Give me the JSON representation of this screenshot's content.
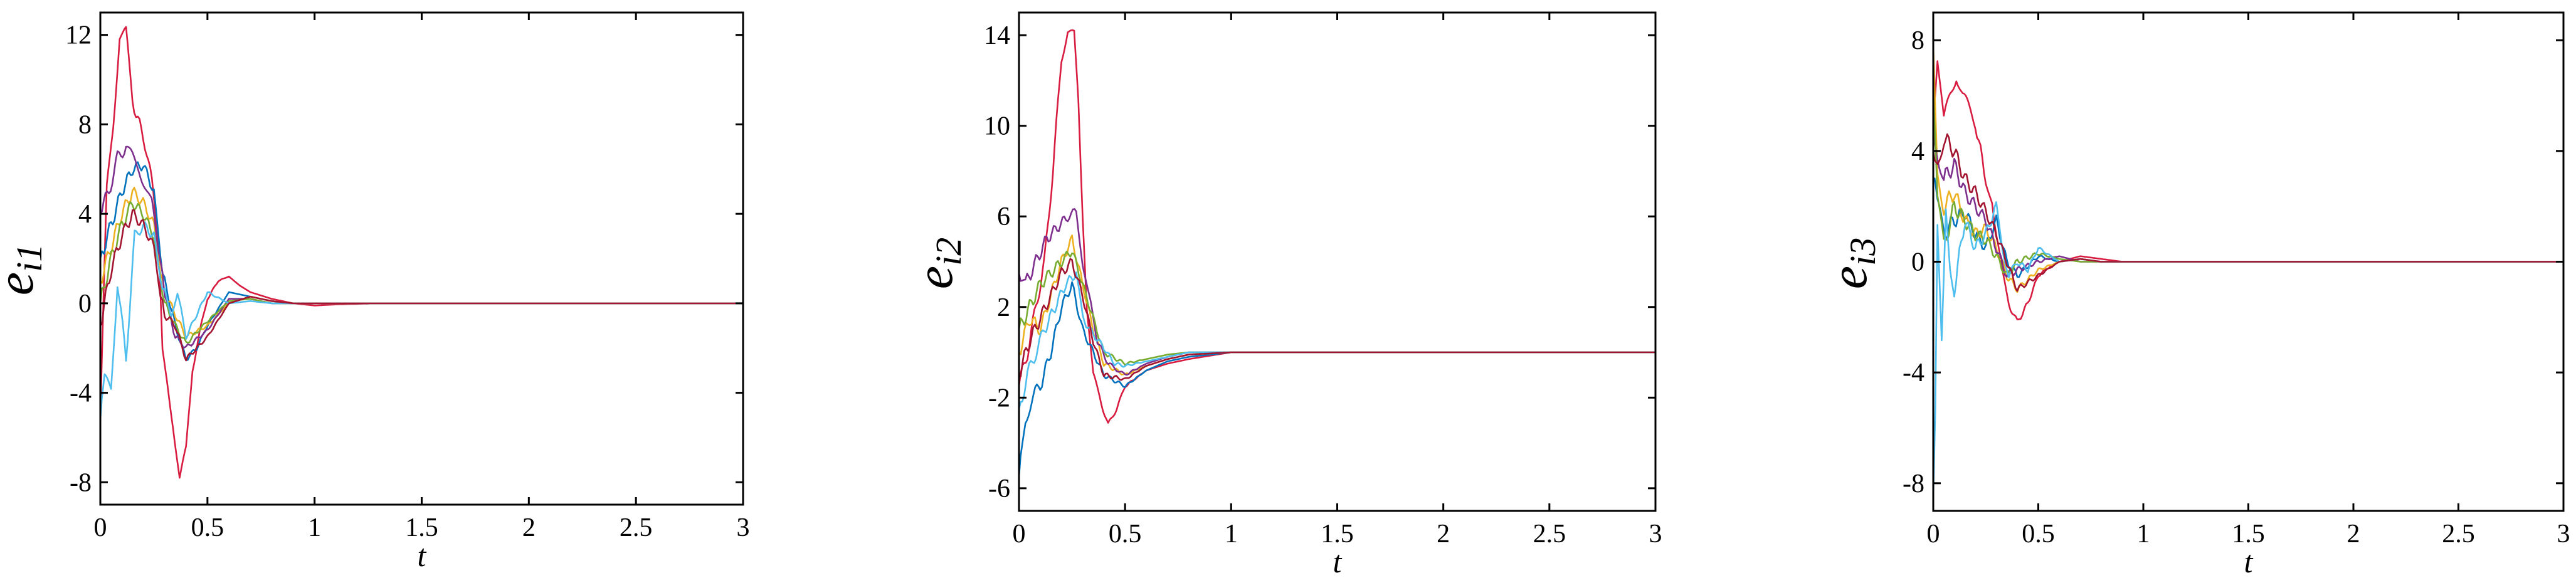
{
  "chart_data": [
    {
      "type": "line",
      "xlabel": "t",
      "ylabel_base": "e",
      "ylabel_sub": "i1",
      "xlim": [
        0,
        3
      ],
      "ylim": [
        -9,
        13
      ],
      "xticks": [
        0,
        0.5,
        1,
        1.5,
        2,
        2.5,
        3
      ],
      "xtick_labels": [
        "0",
        "0.5",
        "1",
        "1.5",
        "2",
        "2.5",
        "3"
      ],
      "yticks": [
        -8,
        -4,
        0,
        4,
        8,
        12
      ],
      "ytick_labels": [
        "-8",
        "-4",
        "0",
        "4",
        "8",
        "12"
      ],
      "grid": false,
      "series": [
        {
          "color": "#d81b3f",
          "x": [
            0,
            0.03,
            0.06,
            0.09,
            0.12,
            0.15,
            0.2,
            0.24,
            0.27,
            0.29,
            0.31,
            0.34,
            0.37,
            0.4,
            0.43,
            0.47,
            0.5,
            0.55,
            0.6,
            0.65,
            0.7,
            0.8,
            0.9,
            1.0,
            1.1,
            1.3,
            1.5,
            2,
            3
          ],
          "y": [
            -5,
            5,
            8,
            12,
            12.1,
            9,
            7.5,
            5.5,
            3,
            -2,
            -3.5,
            -5.5,
            -7.8,
            -6.5,
            -3,
            -1,
            0.2,
            1,
            1.2,
            0.8,
            0.5,
            0.2,
            0,
            -0.1,
            -0.05,
            0,
            0,
            0,
            0
          ]
        },
        {
          "color": "#0072bd",
          "x": [
            0,
            0.05,
            0.1,
            0.15,
            0.2,
            0.25,
            0.28,
            0.3,
            0.35,
            0.4,
            0.45,
            0.5,
            0.6,
            0.7,
            0.8,
            0.9,
            1.0,
            1.2,
            1.5,
            3
          ],
          "y": [
            2,
            3.5,
            5,
            6,
            6.2,
            5,
            2,
            1,
            -1,
            -2.5,
            -2,
            -1,
            0.5,
            0.3,
            0.1,
            0,
            0,
            0,
            0,
            0
          ]
        },
        {
          "color": "#edb120",
          "x": [
            0,
            0.05,
            0.1,
            0.15,
            0.2,
            0.25,
            0.28,
            0.3,
            0.35,
            0.4,
            0.5,
            0.6,
            0.7,
            0.8,
            0.9,
            1.0,
            1.5,
            3
          ],
          "y": [
            1,
            2.5,
            4,
            5,
            4.5,
            3.5,
            1.5,
            0.5,
            -0.5,
            -1.5,
            -1,
            0,
            0.3,
            0.1,
            0,
            0,
            0,
            0
          ]
        },
        {
          "color": "#7e2f8e",
          "x": [
            0,
            0.04,
            0.08,
            0.12,
            0.18,
            0.24,
            0.28,
            0.3,
            0.35,
            0.4,
            0.5,
            0.6,
            0.7,
            0.8,
            0.9,
            1.0,
            1.5,
            3
          ],
          "y": [
            4,
            5,
            6.5,
            7,
            6,
            4.5,
            2,
            0.5,
            -1.5,
            -2,
            -1.2,
            0.2,
            0.2,
            0,
            0,
            0,
            0,
            0
          ]
        },
        {
          "color": "#77ac30",
          "x": [
            0,
            0.05,
            0.1,
            0.15,
            0.2,
            0.25,
            0.28,
            0.3,
            0.35,
            0.4,
            0.5,
            0.6,
            0.7,
            0.8,
            0.9,
            1.0,
            1.5,
            3
          ],
          "y": [
            0,
            2,
            3.5,
            4.5,
            4,
            3,
            1,
            0,
            -1,
            -1.8,
            -0.8,
            0.1,
            0.2,
            0,
            0,
            0,
            0,
            0
          ]
        },
        {
          "color": "#4dbeee",
          "x": [
            0,
            0.02,
            0.05,
            0.08,
            0.12,
            0.16,
            0.2,
            0.25,
            0.28,
            0.3,
            0.33,
            0.36,
            0.4,
            0.45,
            0.5,
            0.6,
            0.7,
            0.8,
            0.9,
            1.0,
            1.5,
            3
          ],
          "y": [
            -5.2,
            -3.5,
            -3.8,
            1,
            -2.5,
            3,
            3.5,
            3,
            1,
            0.5,
            -0.5,
            0.5,
            -1.5,
            -0.5,
            0.5,
            0,
            0.1,
            0,
            0,
            0,
            0,
            0
          ]
        },
        {
          "color": "#a2142f",
          "x": [
            0,
            0.05,
            0.1,
            0.15,
            0.2,
            0.25,
            0.28,
            0.3,
            0.35,
            0.4,
            0.5,
            0.6,
            0.7,
            0.8,
            0.9,
            1.0,
            1.5,
            3
          ],
          "y": [
            -1,
            1.5,
            3,
            4,
            3.5,
            2.5,
            0.5,
            -0.5,
            -1,
            -2.5,
            -1.5,
            0,
            0.3,
            0.1,
            0,
            0,
            0,
            0
          ]
        }
      ]
    },
    {
      "type": "line",
      "xlabel": "t",
      "ylabel_base": "e",
      "ylabel_sub": "i2",
      "xlim": [
        0,
        3
      ],
      "ylim": [
        -7,
        15
      ],
      "xticks": [
        0,
        0.5,
        1,
        1.5,
        2,
        2.5,
        3
      ],
      "xtick_labels": [
        "0",
        "0.5",
        "1",
        "1.5",
        "2",
        "2.5",
        "3"
      ],
      "yticks": [
        -6,
        -2,
        2,
        6,
        10,
        14
      ],
      "ytick_labels": [
        "-6",
        "-2",
        "2",
        "6",
        "10",
        "14"
      ],
      "grid": false,
      "series": [
        {
          "color": "#d81b3f",
          "x": [
            0,
            0.04,
            0.08,
            0.12,
            0.16,
            0.2,
            0.23,
            0.26,
            0.28,
            0.3,
            0.32,
            0.35,
            0.38,
            0.42,
            0.46,
            0.5,
            0.6,
            0.7,
            0.8,
            1.0,
            1.2,
            1.5,
            3
          ],
          "y": [
            -1.5,
            0,
            2,
            4,
            8,
            13,
            14.2,
            14,
            11,
            6,
            2,
            -1,
            -2,
            -3.2,
            -2.5,
            -1.5,
            -0.8,
            -0.5,
            -0.3,
            0,
            0,
            0,
            0
          ]
        },
        {
          "color": "#0072bd",
          "x": [
            0,
            0.03,
            0.06,
            0.1,
            0.15,
            0.2,
            0.25,
            0.3,
            0.35,
            0.4,
            0.5,
            0.6,
            0.7,
            0.8,
            1.0,
            1.2,
            1.5,
            3
          ],
          "y": [
            -5.5,
            -3,
            -2,
            -1.5,
            0,
            2,
            3,
            1,
            0,
            -1,
            -1.5,
            -0.8,
            -0.4,
            -0.2,
            0,
            0,
            0,
            0
          ]
        },
        {
          "color": "#edb120",
          "x": [
            0,
            0.05,
            0.1,
            0.15,
            0.2,
            0.25,
            0.3,
            0.35,
            0.4,
            0.5,
            0.6,
            0.7,
            0.8,
            1.0,
            1.5,
            3
          ],
          "y": [
            0,
            1.5,
            1,
            2.5,
            4,
            5,
            3,
            1,
            -0.5,
            -1,
            -0.6,
            -0.3,
            -0.1,
            0,
            0,
            0
          ]
        },
        {
          "color": "#7e2f8e",
          "x": [
            0,
            0.03,
            0.08,
            0.13,
            0.18,
            0.23,
            0.27,
            0.3,
            0.33,
            0.37,
            0.42,
            0.5,
            0.6,
            0.7,
            0.8,
            1.0,
            1.5,
            3
          ],
          "y": [
            3.5,
            3,
            4,
            5,
            5.5,
            6,
            6.2,
            4,
            2.5,
            0.5,
            -0.5,
            -1,
            -0.5,
            -0.2,
            0,
            0,
            0,
            0
          ]
        },
        {
          "color": "#77ac30",
          "x": [
            0,
            0.05,
            0.1,
            0.15,
            0.2,
            0.25,
            0.3,
            0.35,
            0.4,
            0.5,
            0.6,
            0.7,
            0.8,
            1.0,
            1.5,
            3
          ],
          "y": [
            1,
            2,
            3,
            3.5,
            4,
            4.5,
            3,
            1.5,
            0,
            -0.5,
            -0.3,
            -0.1,
            0,
            0,
            0,
            0
          ]
        },
        {
          "color": "#4dbeee",
          "x": [
            0,
            0.04,
            0.08,
            0.12,
            0.17,
            0.22,
            0.27,
            0.3,
            0.35,
            0.4,
            0.45,
            0.5,
            0.6,
            0.7,
            0.8,
            1.0,
            1.5,
            3
          ],
          "y": [
            -2.5,
            -1,
            0,
            1,
            2,
            3,
            3.5,
            1.5,
            0.8,
            0.2,
            -0.5,
            -0.6,
            -0.4,
            -0.2,
            0,
            0,
            0,
            0
          ]
        },
        {
          "color": "#a2142f",
          "x": [
            0,
            0.05,
            0.1,
            0.15,
            0.2,
            0.25,
            0.3,
            0.35,
            0.4,
            0.5,
            0.6,
            0.7,
            0.8,
            1.0,
            1.5,
            3
          ],
          "y": [
            -1,
            0.5,
            1.5,
            2.5,
            3.5,
            4,
            2.5,
            0.5,
            -1,
            -1.2,
            -0.6,
            -0.3,
            -0.1,
            0,
            0,
            0
          ]
        }
      ]
    },
    {
      "type": "line",
      "xlabel": "t",
      "ylabel_base": "e",
      "ylabel_sub": "i3",
      "xlim": [
        0,
        3
      ],
      "ylim": [
        -9,
        9
      ],
      "xticks": [
        0,
        0.5,
        1,
        1.5,
        2,
        2.5,
        3
      ],
      "xtick_labels": [
        "0",
        "0.5",
        "1",
        "1.5",
        "2",
        "2.5",
        "3"
      ],
      "yticks": [
        -8,
        -4,
        0,
        4,
        8
      ],
      "ytick_labels": [
        "-8",
        "-4",
        "0",
        "4",
        "8"
      ],
      "grid": false,
      "series": [
        {
          "color": "#d81b3f",
          "x": [
            0,
            0.02,
            0.05,
            0.08,
            0.11,
            0.14,
            0.2,
            0.25,
            0.28,
            0.3,
            0.33,
            0.36,
            0.4,
            0.45,
            0.5,
            0.55,
            0.6,
            0.7,
            0.8,
            0.9,
            1.0,
            1.5,
            3
          ],
          "y": [
            5,
            7.5,
            5,
            6,
            6.8,
            6,
            5,
            3,
            2,
            1,
            -0.5,
            -1.5,
            -2.2,
            -1.5,
            -0.5,
            -0.2,
            0,
            0.2,
            0.1,
            0,
            0,
            0,
            0
          ]
        },
        {
          "color": "#0072bd",
          "x": [
            0,
            0.02,
            0.05,
            0.1,
            0.15,
            0.2,
            0.25,
            0.3,
            0.35,
            0.4,
            0.5,
            0.6,
            0.7,
            0.8,
            1.0,
            1.5,
            3
          ],
          "y": [
            3,
            2,
            1,
            1.5,
            1.8,
            1,
            0.5,
            1.5,
            0,
            -0.5,
            0.2,
            0,
            0.1,
            0,
            0,
            0,
            0
          ]
        },
        {
          "color": "#edb120",
          "x": [
            0,
            0.02,
            0.05,
            0.1,
            0.15,
            0.2,
            0.25,
            0.3,
            0.35,
            0.4,
            0.5,
            0.6,
            0.7,
            0.8,
            1.0,
            1.5,
            3
          ],
          "y": [
            7.8,
            3,
            2,
            2.5,
            1.5,
            1,
            1.2,
            0.5,
            -0.5,
            -1,
            -0.3,
            0,
            0.1,
            0,
            0,
            0,
            0
          ]
        },
        {
          "color": "#7e2f8e",
          "x": [
            0,
            0.02,
            0.05,
            0.1,
            0.15,
            0.2,
            0.25,
            0.3,
            0.35,
            0.4,
            0.5,
            0.6,
            0.7,
            0.8,
            1.0,
            1.5,
            3
          ],
          "y": [
            5,
            4,
            3,
            3.5,
            2.5,
            2,
            1.5,
            0.5,
            -0.5,
            -0.3,
            0,
            0.2,
            0,
            0,
            0,
            0,
            0
          ]
        },
        {
          "color": "#77ac30",
          "x": [
            0,
            0.02,
            0.05,
            0.1,
            0.15,
            0.2,
            0.25,
            0.3,
            0.35,
            0.4,
            0.5,
            0.6,
            0.7,
            0.8,
            1.0,
            1.5,
            3
          ],
          "y": [
            6,
            2.5,
            0.5,
            2,
            1.5,
            1,
            0.8,
            0.2,
            -0.5,
            0,
            0.3,
            0.1,
            0,
            0,
            0,
            0,
            0
          ]
        },
        {
          "color": "#4dbeee",
          "x": [
            0,
            0.01,
            0.02,
            0.04,
            0.06,
            0.08,
            0.1,
            0.15,
            0.2,
            0.25,
            0.3,
            0.33,
            0.36,
            0.4,
            0.45,
            0.5,
            0.6,
            0.7,
            0.8,
            1.0,
            1.5,
            3
          ],
          "y": [
            -8.5,
            -5,
            1,
            -3,
            2,
            0,
            -1,
            1.5,
            0.5,
            1,
            2,
            0.5,
            -0.5,
            0,
            -0.3,
            0.5,
            0,
            0.1,
            0,
            0,
            0,
            0
          ]
        },
        {
          "color": "#a2142f",
          "x": [
            0,
            0.02,
            0.05,
            0.1,
            0.15,
            0.2,
            0.25,
            0.3,
            0.35,
            0.4,
            0.5,
            0.6,
            0.7,
            0.8,
            1.0,
            1.5,
            3
          ],
          "y": [
            4,
            3.5,
            4.5,
            4,
            3,
            2.5,
            1.8,
            1,
            0,
            -1,
            -0.5,
            0,
            0.1,
            0,
            0,
            0,
            0
          ]
        }
      ]
    }
  ]
}
